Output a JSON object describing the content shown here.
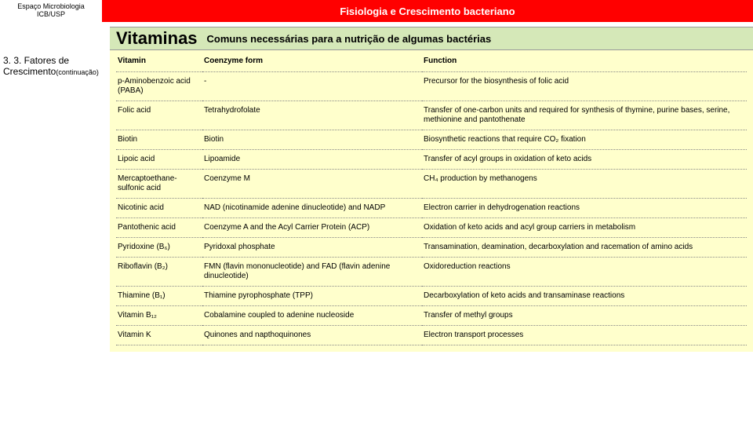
{
  "header": {
    "logo_line1": "Espaço Microbiologia",
    "logo_line2": "ICB/USP",
    "title": "Fisiologia e Crescimento bacteriano"
  },
  "subtitle": {
    "main": "Vitaminas",
    "sub": "Comuns necessárias para a nutrição de algumas bactérias"
  },
  "sidebar": {
    "line1": "3. 3. Fatores de",
    "line2": "Crescimento",
    "suffix": "(continuação)"
  },
  "table": {
    "columns": [
      "Vitamin",
      "Coenzyme form",
      "Function"
    ],
    "rows": [
      [
        "p-Aminobenzoic acid (PABA)",
        "-",
        "Precursor for the biosynthesis of folic acid"
      ],
      [
        "Folic acid",
        "Tetrahydrofolate",
        "Transfer of one-carbon units and required for synthesis of thymine, purine bases, serine, methionine and pantothenate"
      ],
      [
        "Biotin",
        "Biotin",
        "Biosynthetic reactions that require CO₂ fixation"
      ],
      [
        "Lipoic acid",
        "Lipoamide",
        "Transfer of acyl groups in oxidation of keto acids"
      ],
      [
        "Mercaptoethane-sulfonic acid",
        "Coenzyme M",
        "CH₄ production by methanogens"
      ],
      [
        "Nicotinic acid",
        "NAD (nicotinamide adenine dinucleotide) and NADP",
        "Electron carrier in dehydrogenation reactions"
      ],
      [
        "Pantothenic acid",
        "Coenzyme A and the Acyl Carrier Protein (ACP)",
        "Oxidation of keto acids and acyl group carriers in metabolism"
      ],
      [
        "Pyridoxine (B₆)",
        "Pyridoxal phosphate",
        "Transamination, deamination, decarboxylation and racemation of amino acids"
      ],
      [
        "Riboflavin (B₂)",
        "FMN (flavin mononucleotide) and FAD (flavin adenine dinucleotide)",
        "Oxidoreduction reactions"
      ],
      [
        "Thiamine (B₁)",
        "Thiamine pyrophosphate (TPP)",
        "Decarboxylation of keto acids and transaminase reactions"
      ],
      [
        "Vitamin B₁₂",
        "Cobalamine coupled to adenine nucleoside",
        "Transfer of methyl groups"
      ],
      [
        "Vitamin K",
        "Quinones and napthoquinones",
        "Electron transport processes"
      ]
    ]
  },
  "colors": {
    "title_bg": "#ff0000",
    "subtitle_bg": "#d5e8b8",
    "table_bg": "#ffffcc"
  }
}
